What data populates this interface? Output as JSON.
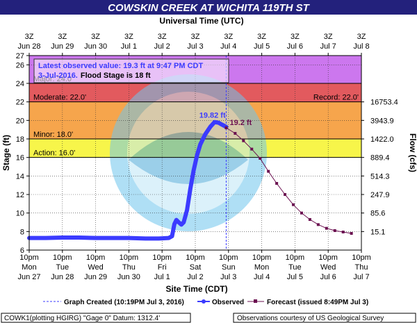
{
  "title": "COWSKIN CREEK AT WICHITA 119TH ST",
  "colors": {
    "title_bar": "#23217c",
    "title_text": "#ffffff",
    "major_band": "#cc77ee",
    "moderate_band": "#e25a5e",
    "minor_band": "#f6a54c",
    "action_band": "#f7f54a",
    "observed": "#3b3bff",
    "forecast": "#6b1050",
    "info_text": "#3b3bff",
    "watermark": "#6fc6ee"
  },
  "chart_data": {
    "type": "line",
    "title": "COWSKIN CREEK AT WICHITA 119TH ST",
    "top_axis_title": "Universal Time (UTC)",
    "xlabel": "Site Time (CDT)",
    "ylabel": "Stage (ft)",
    "y2label": "Flow (cfs)",
    "xlim_days": [
      0,
      10
    ],
    "ylim": [
      6,
      27
    ],
    "grid": true,
    "y_ticks": [
      6,
      8,
      10,
      12,
      14,
      16,
      18,
      20,
      22,
      24,
      26,
      27
    ],
    "bottom_ticks": [
      {
        "t": "10pm",
        "d": "Mon",
        "dt": "Jun 27"
      },
      {
        "t": "10pm",
        "d": "Tue",
        "dt": "Jun 28"
      },
      {
        "t": "10pm",
        "d": "Wed",
        "dt": "Jun 29"
      },
      {
        "t": "10pm",
        "d": "Thu",
        "dt": "Jun 30"
      },
      {
        "t": "10pm",
        "d": "Fri",
        "dt": "Jul 1"
      },
      {
        "t": "10pm",
        "d": "Sat",
        "dt": "Jul 2"
      },
      {
        "t": "10pm",
        "d": "Sun",
        "dt": "Jul 3"
      },
      {
        "t": "10pm",
        "d": "Mon",
        "dt": "Jul 4"
      },
      {
        "t": "10pm",
        "d": "Tue",
        "dt": "Jul 5"
      },
      {
        "t": "10pm",
        "d": "Wed",
        "dt": "Jul 6"
      },
      {
        "t": "10pm",
        "d": "Thu",
        "dt": "Jul 7"
      }
    ],
    "top_ticks": [
      {
        "t": "3Z",
        "dt": "Jun 28"
      },
      {
        "t": "3Z",
        "dt": "Jun 29"
      },
      {
        "t": "3Z",
        "dt": "Jun 30"
      },
      {
        "t": "3Z",
        "dt": "Jul 1"
      },
      {
        "t": "3Z",
        "dt": "Jul 2"
      },
      {
        "t": "3Z",
        "dt": "Jul 3"
      },
      {
        "t": "3Z",
        "dt": "Jul 4"
      },
      {
        "t": "3Z",
        "dt": "Jul 5"
      },
      {
        "t": "3Z",
        "dt": "Jul 6"
      },
      {
        "t": "3Z",
        "dt": "Jul 7"
      },
      {
        "t": "3Z",
        "dt": "Jul 8"
      }
    ],
    "flow_ticks": [
      {
        "stage": 22,
        "label": "16753.4"
      },
      {
        "stage": 20,
        "label": "3943.9"
      },
      {
        "stage": 18,
        "label": "1422.0"
      },
      {
        "stage": 16,
        "label": "889.4"
      },
      {
        "stage": 14,
        "label": "514.3"
      },
      {
        "stage": 12,
        "label": "247.9"
      },
      {
        "stage": 10,
        "label": "85.6"
      },
      {
        "stage": 8,
        "label": "15.1"
      }
    ],
    "flood_categories": [
      {
        "name": "Major",
        "label": "Major: 24.0'",
        "from": 24,
        "to": 27
      },
      {
        "name": "Moderate",
        "label": "Moderate: 22.0'",
        "from": 22,
        "to": 24
      },
      {
        "name": "Minor",
        "label": "Minor: 18.0'",
        "from": 18,
        "to": 22
      },
      {
        "name": "Action",
        "label": "Action: 16.0'",
        "from": 16,
        "to": 18
      }
    ],
    "record_label": "Record: 22.0'",
    "graph_created_x": 5.93,
    "series": [
      {
        "name": "Observed",
        "x": [
          0,
          0.5,
          1,
          1.5,
          2,
          2.5,
          3,
          3.5,
          3.9,
          4.2,
          4.3,
          4.37,
          4.43,
          4.5,
          4.58,
          4.65,
          4.75,
          4.85,
          4.95,
          5.05,
          5.15,
          5.3,
          5.45,
          5.58,
          5.7,
          5.8,
          5.88,
          5.93
        ],
        "y": [
          7.3,
          7.3,
          7.35,
          7.35,
          7.3,
          7.3,
          7.3,
          7.25,
          7.25,
          7.3,
          7.5,
          8.8,
          9.25,
          9.0,
          8.75,
          9.0,
          10.3,
          12.6,
          14.6,
          16.2,
          17.4,
          18.5,
          19.3,
          19.82,
          19.75,
          19.55,
          19.4,
          19.3
        ]
      },
      {
        "name": "Forecast",
        "x": [
          5.93,
          6.2,
          6.45,
          6.7,
          6.95,
          7.2,
          7.45,
          7.7,
          7.95,
          8.2,
          8.45,
          8.7,
          8.95,
          9.2,
          9.45,
          9.7
        ],
        "y": [
          19.2,
          18.6,
          17.8,
          16.9,
          15.9,
          14.5,
          13.2,
          12.0,
          10.9,
          10.0,
          9.3,
          8.75,
          8.35,
          8.1,
          7.95,
          7.8
        ]
      }
    ],
    "annotations": {
      "peak_label": "19.82 ft",
      "forecast_label": "19.2 ft",
      "info_line1": "Latest observed value: 19.3 ft at 9:47 PM CDT",
      "info_line2_a": "3-Jul-2016.",
      "info_line2_b": "Flood Stage is 18 ft"
    },
    "legend": {
      "created": "Graph Created (10:19PM Jul 3, 2016)",
      "observed": "Observed",
      "forecast": "Forecast (issued 8:49PM Jul 3)"
    },
    "footer": {
      "left": "COWK1(plotting HGIRG) \"Gage 0\" Datum: 1312.4'",
      "right": "Observations courtesy of US Geological Survey"
    }
  }
}
